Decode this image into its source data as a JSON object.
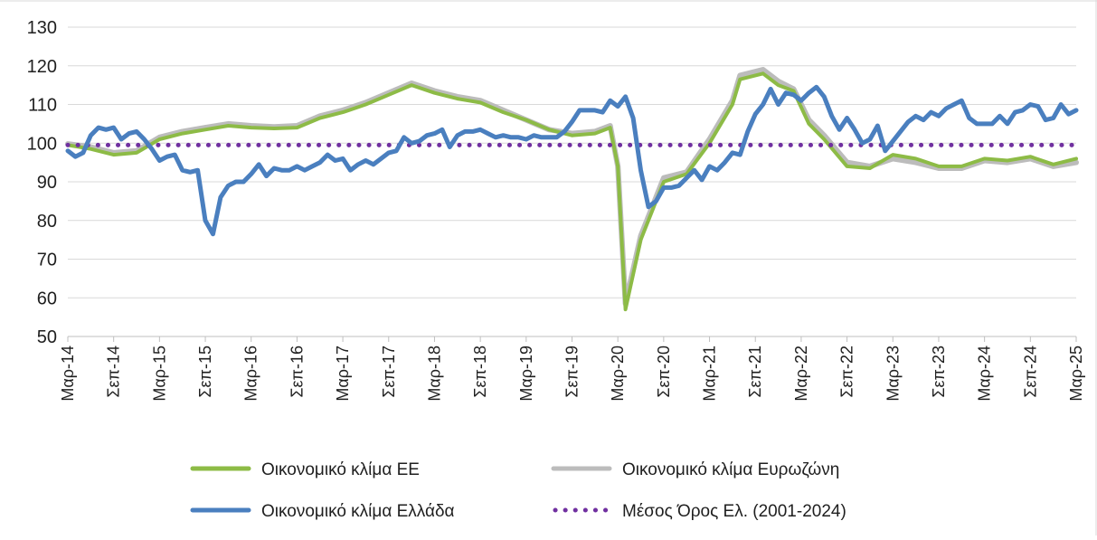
{
  "chart_data": {
    "type": "line",
    "title": "",
    "xlabel": "",
    "ylabel": "",
    "ylim": [
      50,
      130
    ],
    "yticks": [
      50,
      60,
      70,
      80,
      90,
      100,
      110,
      120,
      130
    ],
    "grid": "horizontal",
    "legend_position": "bottom",
    "x_tick_labels": [
      "Μαρ-14",
      "Σεπ-14",
      "Μαρ-15",
      "Σεπ-15",
      "Μαρ-16",
      "Σεπ-16",
      "Μαρ-17",
      "Σεπ-17",
      "Μαρ-18",
      "Σεπ-18",
      "Μαρ-19",
      "Σεπ-19",
      "Μαρ-20",
      "Σεπ-20",
      "Μαρ-21",
      "Σεπ-21",
      "Μαρ-22",
      "Σεπ-22",
      "Μαρ-23",
      "Σεπ-23",
      "Μαρ-24",
      "Σεπ-24",
      "Μαρ-25"
    ],
    "x_start": "2014-03",
    "x_end": "2025-03",
    "series": [
      {
        "name": "Οικονομικό κλίμα ΕΕ",
        "color": "#8dbb46",
        "style": "solid",
        "values": [
          [
            "2014-03",
            99.5
          ],
          [
            "2014-06",
            98.5
          ],
          [
            "2014-09",
            97
          ],
          [
            "2014-12",
            97.5
          ],
          [
            "2015-03",
            101
          ],
          [
            "2015-06",
            102.5
          ],
          [
            "2015-09",
            103.5
          ],
          [
            "2015-12",
            104.5
          ],
          [
            "2016-03",
            104
          ],
          [
            "2016-06",
            103.8
          ],
          [
            "2016-09",
            104
          ],
          [
            "2016-12",
            106.5
          ],
          [
            "2017-03",
            108
          ],
          [
            "2017-06",
            110
          ],
          [
            "2017-09",
            112.5
          ],
          [
            "2017-12",
            115
          ],
          [
            "2018-03",
            113
          ],
          [
            "2018-06",
            111.5
          ],
          [
            "2018-09",
            110.5
          ],
          [
            "2018-12",
            108
          ],
          [
            "2019-03",
            106
          ],
          [
            "2019-06",
            103.5
          ],
          [
            "2019-09",
            102
          ],
          [
            "2019-12",
            102.5
          ],
          [
            "2020-02",
            104
          ],
          [
            "2020-03",
            94
          ],
          [
            "2020-04",
            57
          ],
          [
            "2020-06",
            75
          ],
          [
            "2020-09",
            90
          ],
          [
            "2020-12",
            92
          ],
          [
            "2021-03",
            100
          ],
          [
            "2021-06",
            110
          ],
          [
            "2021-07",
            116.5
          ],
          [
            "2021-10",
            118
          ],
          [
            "2021-12",
            115
          ],
          [
            "2022-02",
            113.5
          ],
          [
            "2022-04",
            105
          ],
          [
            "2022-06",
            101
          ],
          [
            "2022-09",
            94
          ],
          [
            "2022-12",
            93.5
          ],
          [
            "2023-03",
            97
          ],
          [
            "2023-06",
            96
          ],
          [
            "2023-09",
            94
          ],
          [
            "2023-12",
            94
          ],
          [
            "2024-03",
            96
          ],
          [
            "2024-06",
            95.5
          ],
          [
            "2024-09",
            96.5
          ],
          [
            "2024-12",
            94.5
          ],
          [
            "2025-03",
            96
          ]
        ]
      },
      {
        "name": "Οικονομικό κλίμα Ευρωζώνη",
        "color": "#bcbcbc",
        "style": "solid",
        "values": [
          [
            "2014-03",
            99.8
          ],
          [
            "2014-06",
            99
          ],
          [
            "2014-09",
            97.5
          ],
          [
            "2014-12",
            98
          ],
          [
            "2015-03",
            101.5
          ],
          [
            "2015-06",
            103
          ],
          [
            "2015-09",
            104
          ],
          [
            "2015-12",
            105
          ],
          [
            "2016-03",
            104.5
          ],
          [
            "2016-06",
            104.2
          ],
          [
            "2016-09",
            104.5
          ],
          [
            "2016-12",
            107
          ],
          [
            "2017-03",
            108.5
          ],
          [
            "2017-06",
            110.5
          ],
          [
            "2017-09",
            113
          ],
          [
            "2017-12",
            115.5
          ],
          [
            "2018-03",
            113.5
          ],
          [
            "2018-06",
            112
          ],
          [
            "2018-09",
            111
          ],
          [
            "2018-12",
            108.5
          ],
          [
            "2019-03",
            106
          ],
          [
            "2019-06",
            103.5
          ],
          [
            "2019-09",
            102.5
          ],
          [
            "2019-12",
            103
          ],
          [
            "2020-02",
            104.5
          ],
          [
            "2020-03",
            94
          ],
          [
            "2020-04",
            58.5
          ],
          [
            "2020-06",
            76
          ],
          [
            "2020-09",
            91
          ],
          [
            "2020-12",
            92.5
          ],
          [
            "2021-03",
            101
          ],
          [
            "2021-06",
            111
          ],
          [
            "2021-07",
            117.5
          ],
          [
            "2021-10",
            119
          ],
          [
            "2021-12",
            116
          ],
          [
            "2022-02",
            114
          ],
          [
            "2022-04",
            106
          ],
          [
            "2022-06",
            102
          ],
          [
            "2022-09",
            95
          ],
          [
            "2022-12",
            94
          ],
          [
            "2023-03",
            96
          ],
          [
            "2023-06",
            95
          ],
          [
            "2023-09",
            93.5
          ],
          [
            "2023-12",
            93.5
          ],
          [
            "2024-03",
            95.5
          ],
          [
            "2024-06",
            95
          ],
          [
            "2024-09",
            96
          ],
          [
            "2024-12",
            94
          ],
          [
            "2025-03",
            95
          ]
        ]
      },
      {
        "name": "Οικονομικό κλίμα Ελλάδα",
        "color": "#4a7fbf",
        "style": "solid",
        "values": [
          [
            "2014-03",
            98
          ],
          [
            "2014-04",
            96.5
          ],
          [
            "2014-05",
            97.5
          ],
          [
            "2014-06",
            102
          ],
          [
            "2014-07",
            104
          ],
          [
            "2014-08",
            103.5
          ],
          [
            "2014-09",
            104
          ],
          [
            "2014-10",
            101
          ],
          [
            "2014-11",
            102.5
          ],
          [
            "2014-12",
            103
          ],
          [
            "2015-01",
            101
          ],
          [
            "2015-02",
            98.5
          ],
          [
            "2015-03",
            95.5
          ],
          [
            "2015-04",
            96.5
          ],
          [
            "2015-05",
            97
          ],
          [
            "2015-06",
            93
          ],
          [
            "2015-07",
            92.5
          ],
          [
            "2015-08",
            93
          ],
          [
            "2015-09",
            80
          ],
          [
            "2015-10",
            76.5
          ],
          [
            "2015-11",
            86
          ],
          [
            "2015-12",
            89
          ],
          [
            "2016-01",
            90
          ],
          [
            "2016-02",
            90
          ],
          [
            "2016-03",
            92
          ],
          [
            "2016-04",
            94.5
          ],
          [
            "2016-05",
            91.5
          ],
          [
            "2016-06",
            93.5
          ],
          [
            "2016-07",
            93
          ],
          [
            "2016-08",
            93
          ],
          [
            "2016-09",
            94
          ],
          [
            "2016-10",
            93
          ],
          [
            "2016-11",
            94
          ],
          [
            "2016-12",
            95
          ],
          [
            "2017-01",
            97
          ],
          [
            "2017-02",
            95.5
          ],
          [
            "2017-03",
            96
          ],
          [
            "2017-04",
            93
          ],
          [
            "2017-05",
            94.5
          ],
          [
            "2017-06",
            95.5
          ],
          [
            "2017-07",
            94.5
          ],
          [
            "2017-08",
            96
          ],
          [
            "2017-09",
            97.5
          ],
          [
            "2017-10",
            98
          ],
          [
            "2017-11",
            101.5
          ],
          [
            "2017-12",
            100
          ],
          [
            "2018-01",
            100.5
          ],
          [
            "2018-02",
            102
          ],
          [
            "2018-03",
            102.5
          ],
          [
            "2018-04",
            103.5
          ],
          [
            "2018-05",
            99
          ],
          [
            "2018-06",
            102
          ],
          [
            "2018-07",
            103
          ],
          [
            "2018-08",
            103
          ],
          [
            "2018-09",
            103.5
          ],
          [
            "2018-10",
            102.5
          ],
          [
            "2018-11",
            101.5
          ],
          [
            "2018-12",
            102
          ],
          [
            "2019-01",
            101.5
          ],
          [
            "2019-02",
            101.5
          ],
          [
            "2019-03",
            101
          ],
          [
            "2019-04",
            102
          ],
          [
            "2019-05",
            101.5
          ],
          [
            "2019-06",
            101.5
          ],
          [
            "2019-07",
            101.5
          ],
          [
            "2019-08",
            103
          ],
          [
            "2019-09",
            105.5
          ],
          [
            "2019-10",
            108.5
          ],
          [
            "2019-11",
            108.5
          ],
          [
            "2019-12",
            108.5
          ],
          [
            "2020-01",
            108
          ],
          [
            "2020-02",
            111
          ],
          [
            "2020-03",
            109.5
          ],
          [
            "2020-04",
            112
          ],
          [
            "2020-05",
            106.5
          ],
          [
            "2020-06",
            93
          ],
          [
            "2020-07",
            83.5
          ],
          [
            "2020-08",
            85
          ],
          [
            "2020-09",
            88.5
          ],
          [
            "2020-10",
            88.5
          ],
          [
            "2020-11",
            89
          ],
          [
            "2020-12",
            91
          ],
          [
            "2021-01",
            93
          ],
          [
            "2021-02",
            90.5
          ],
          [
            "2021-03",
            94
          ],
          [
            "2021-04",
            93
          ],
          [
            "2021-05",
            95
          ],
          [
            "2021-06",
            97.5
          ],
          [
            "2021-07",
            97
          ],
          [
            "2021-08",
            103
          ],
          [
            "2021-09",
            107.5
          ],
          [
            "2021-10",
            110
          ],
          [
            "2021-11",
            114
          ],
          [
            "2021-12",
            110
          ],
          [
            "2022-01",
            113
          ],
          [
            "2022-02",
            112.5
          ],
          [
            "2022-03",
            111
          ],
          [
            "2022-04",
            113
          ],
          [
            "2022-05",
            114.5
          ],
          [
            "2022-06",
            112
          ],
          [
            "2022-07",
            107
          ],
          [
            "2022-08",
            103.5
          ],
          [
            "2022-09",
            106.5
          ],
          [
            "2022-10",
            103.5
          ],
          [
            "2022-11",
            100
          ],
          [
            "2022-12",
            101
          ],
          [
            "2023-01",
            104.5
          ],
          [
            "2023-02",
            98
          ],
          [
            "2023-03",
            100.5
          ],
          [
            "2023-04",
            103
          ],
          [
            "2023-05",
            105.5
          ],
          [
            "2023-06",
            107
          ],
          [
            "2023-07",
            106
          ],
          [
            "2023-08",
            108
          ],
          [
            "2023-09",
            107
          ],
          [
            "2023-10",
            109
          ],
          [
            "2023-11",
            110
          ],
          [
            "2023-12",
            111
          ],
          [
            "2024-01",
            106.5
          ],
          [
            "2024-02",
            105
          ],
          [
            "2024-03",
            105
          ],
          [
            "2024-04",
            105
          ],
          [
            "2024-05",
            107
          ],
          [
            "2024-06",
            105
          ],
          [
            "2024-07",
            108
          ],
          [
            "2024-08",
            108.5
          ],
          [
            "2024-09",
            110
          ],
          [
            "2024-10",
            109.5
          ],
          [
            "2024-11",
            106
          ],
          [
            "2024-12",
            106.5
          ],
          [
            "2025-01",
            110
          ],
          [
            "2025-02",
            107.5
          ],
          [
            "2025-03",
            108.5
          ]
        ]
      },
      {
        "name": "Μέσος Όρος Ελ. (2001-2024)",
        "color": "#7030a0",
        "style": "dotted",
        "values": [
          [
            "2014-03",
            99.5
          ],
          [
            "2025-03",
            99.5
          ]
        ]
      }
    ]
  }
}
